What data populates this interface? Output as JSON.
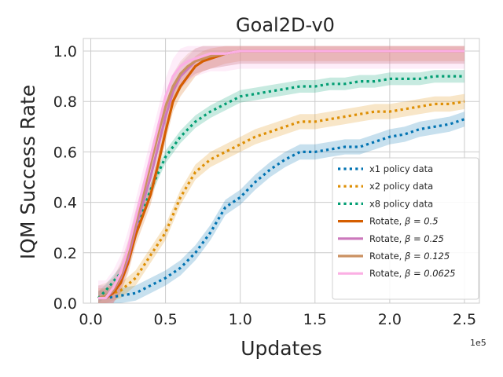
{
  "chart_data": {
    "type": "line",
    "title": "Goal2D-v0",
    "xlabel": "Updates",
    "ylabel": "IQM Success Rate",
    "x_exponent_label": "1e5",
    "xlim": [
      -0.05,
      2.6
    ],
    "ylim": [
      0.0,
      1.05
    ],
    "xticks": [
      0.0,
      0.5,
      1.0,
      1.5,
      2.0,
      2.5
    ],
    "xtick_labels": [
      "0.0",
      "0.5",
      "1.0",
      "1.5",
      "2.0",
      "2.5"
    ],
    "yticks": [
      0.0,
      0.2,
      0.4,
      0.6,
      0.8,
      1.0
    ],
    "ytick_labels": [
      "0.0",
      "0.2",
      "0.4",
      "0.6",
      "0.8",
      "1.0"
    ],
    "grid": true,
    "legend_position": "lower-right",
    "series": [
      {
        "name": "x1 policy data",
        "color": "#0173b2",
        "style": "dotted",
        "x": [
          0.05,
          0.1,
          0.2,
          0.3,
          0.4,
          0.5,
          0.6,
          0.7,
          0.8,
          0.9,
          1.0,
          1.1,
          1.2,
          1.3,
          1.4,
          1.5,
          1.6,
          1.7,
          1.8,
          1.9,
          2.0,
          2.1,
          2.2,
          2.3,
          2.4,
          2.5
        ],
        "y": [
          0.02,
          0.02,
          0.03,
          0.04,
          0.07,
          0.1,
          0.14,
          0.2,
          0.28,
          0.38,
          0.42,
          0.48,
          0.53,
          0.57,
          0.6,
          0.6,
          0.61,
          0.62,
          0.62,
          0.64,
          0.66,
          0.67,
          0.69,
          0.7,
          0.71,
          0.73
        ],
        "band": 0.03
      },
      {
        "name": "x2 policy data",
        "color": "#de8f05",
        "style": "dotted",
        "x": [
          0.05,
          0.1,
          0.2,
          0.3,
          0.4,
          0.5,
          0.6,
          0.7,
          0.8,
          0.9,
          1.0,
          1.1,
          1.2,
          1.3,
          1.4,
          1.5,
          1.6,
          1.7,
          1.8,
          1.9,
          2.0,
          2.1,
          2.2,
          2.3,
          2.4,
          2.5
        ],
        "y": [
          0.02,
          0.03,
          0.05,
          0.1,
          0.19,
          0.28,
          0.42,
          0.52,
          0.57,
          0.6,
          0.63,
          0.66,
          0.68,
          0.7,
          0.72,
          0.72,
          0.73,
          0.74,
          0.75,
          0.76,
          0.76,
          0.77,
          0.78,
          0.79,
          0.79,
          0.8
        ],
        "band": 0.03
      },
      {
        "name": "x8 policy data",
        "color": "#029e73",
        "style": "dotted",
        "x": [
          0.05,
          0.1,
          0.2,
          0.3,
          0.4,
          0.5,
          0.6,
          0.7,
          0.8,
          0.9,
          1.0,
          1.1,
          1.2,
          1.3,
          1.4,
          1.5,
          1.6,
          1.7,
          1.8,
          1.9,
          2.0,
          2.1,
          2.2,
          2.3,
          2.4,
          2.5
        ],
        "y": [
          0.02,
          0.05,
          0.12,
          0.28,
          0.45,
          0.58,
          0.66,
          0.72,
          0.76,
          0.79,
          0.82,
          0.83,
          0.84,
          0.85,
          0.86,
          0.86,
          0.87,
          0.87,
          0.88,
          0.88,
          0.89,
          0.89,
          0.89,
          0.9,
          0.9,
          0.9
        ],
        "band": 0.025
      },
      {
        "name": "Rotate, β = 0.5",
        "legend_prefix": "Rotate, ",
        "legend_beta": "β = 0.5",
        "color": "#d55e00",
        "style": "solid",
        "x": [
          0.05,
          0.1,
          0.15,
          0.2,
          0.25,
          0.3,
          0.35,
          0.4,
          0.45,
          0.5,
          0.55,
          0.6,
          0.65,
          0.7,
          0.75,
          0.8,
          0.9,
          1.0,
          1.2,
          1.5,
          2.0,
          2.5
        ],
        "y": [
          0.02,
          0.02,
          0.04,
          0.08,
          0.16,
          0.27,
          0.35,
          0.43,
          0.55,
          0.68,
          0.8,
          0.86,
          0.9,
          0.94,
          0.96,
          0.97,
          0.99,
          1.0,
          1.0,
          1.0,
          1.0,
          1.0
        ],
        "band": 0.04
      },
      {
        "name": "Rotate, β = 0.25",
        "legend_prefix": "Rotate, ",
        "legend_beta": "β = 0.25",
        "color": "#cc78bc",
        "style": "solid",
        "x": [
          0.05,
          0.1,
          0.15,
          0.2,
          0.25,
          0.3,
          0.35,
          0.4,
          0.45,
          0.5,
          0.55,
          0.6,
          0.65,
          0.7,
          0.75,
          0.8,
          0.9,
          1.0,
          1.2,
          1.5,
          2.0,
          2.5
        ],
        "y": [
          0.02,
          0.02,
          0.05,
          0.1,
          0.18,
          0.3,
          0.4,
          0.5,
          0.62,
          0.74,
          0.84,
          0.9,
          0.93,
          0.96,
          0.97,
          0.98,
          0.99,
          1.0,
          1.0,
          1.0,
          1.0,
          1.0
        ],
        "band": 0.05
      },
      {
        "name": "Rotate, β = 0.125",
        "legend_prefix": "Rotate, ",
        "legend_beta": "β = 0.125",
        "color": "#ca9161",
        "style": "solid",
        "x": [
          0.05,
          0.1,
          0.15,
          0.2,
          0.25,
          0.3,
          0.35,
          0.4,
          0.45,
          0.5,
          0.55,
          0.6,
          0.65,
          0.7,
          0.75,
          0.8,
          0.9,
          1.0,
          1.2,
          1.5,
          2.0,
          2.5
        ],
        "y": [
          0.02,
          0.03,
          0.05,
          0.11,
          0.2,
          0.32,
          0.43,
          0.55,
          0.67,
          0.78,
          0.86,
          0.91,
          0.94,
          0.96,
          0.97,
          0.98,
          0.99,
          1.0,
          1.0,
          1.0,
          1.0,
          1.0
        ],
        "band": 0.05
      },
      {
        "name": "Rotate, β = 0.0625",
        "legend_prefix": "Rotate, ",
        "legend_beta": "β = 0.0625",
        "color": "#fbafe4",
        "style": "solid",
        "x": [
          0.05,
          0.1,
          0.15,
          0.2,
          0.25,
          0.3,
          0.35,
          0.4,
          0.45,
          0.5,
          0.55,
          0.6,
          0.65,
          0.7,
          0.75,
          0.8,
          0.9,
          1.0,
          1.2,
          1.5,
          2.0,
          2.5
        ],
        "y": [
          0.02,
          0.02,
          0.06,
          0.12,
          0.22,
          0.34,
          0.46,
          0.58,
          0.7,
          0.82,
          0.9,
          0.94,
          0.96,
          0.97,
          0.98,
          0.99,
          0.99,
          1.0,
          1.0,
          1.0,
          1.0,
          1.0
        ],
        "band": 0.07
      }
    ]
  }
}
